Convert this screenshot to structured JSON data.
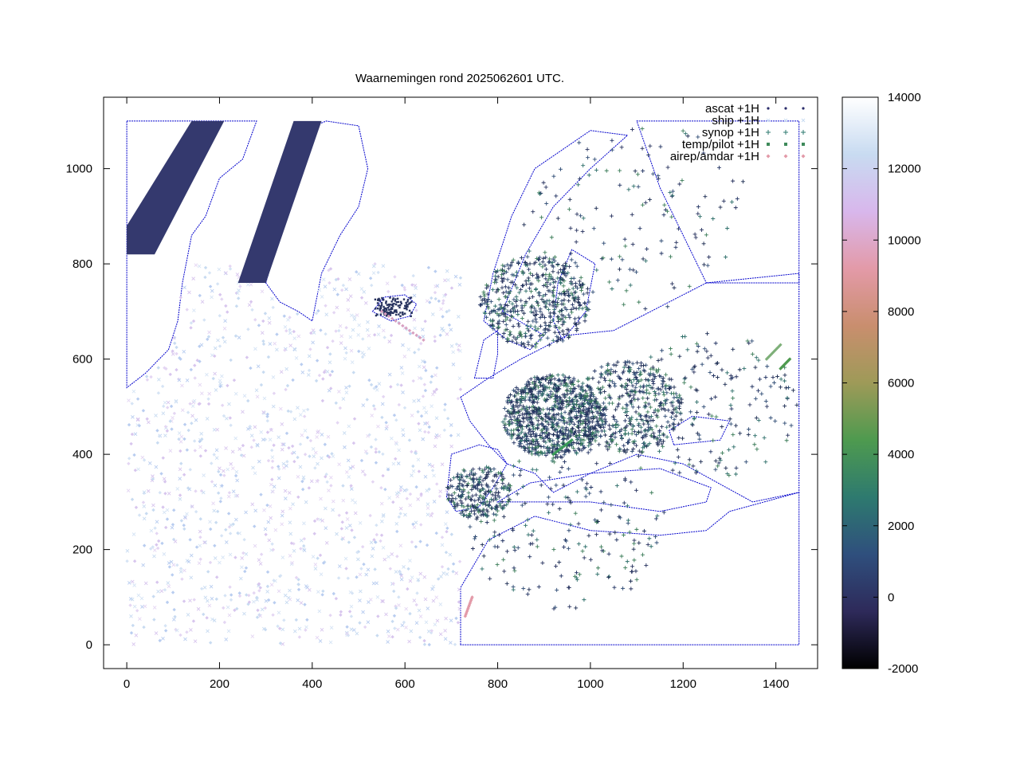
{
  "title": "Waarnemingen rond 2025062601 UTC.",
  "chart_data": {
    "type": "scatter",
    "title": "Waarnemingen rond 2025062601 UTC.",
    "xlim": [
      -50,
      1490
    ],
    "ylim": [
      -50,
      1150
    ],
    "x_ticks": [
      0,
      200,
      400,
      600,
      800,
      1000,
      1200,
      1400
    ],
    "y_ticks": [
      0,
      200,
      400,
      600,
      800,
      1000
    ],
    "grid": false,
    "legend_position": "top-right",
    "legend": [
      {
        "name": "ascat +1H",
        "marker": "dot"
      },
      {
        "name": "ship +1H",
        "marker": "x"
      },
      {
        "name": "synop +1H",
        "marker": "plus"
      },
      {
        "name": "temp/pilot +1H",
        "marker": "filled-square"
      },
      {
        "name": "airep/amdar +1H",
        "marker": "diamond"
      }
    ],
    "colorbar": {
      "range": [
        -2000,
        14000
      ],
      "ticks": [
        -2000,
        0,
        2000,
        4000,
        6000,
        8000,
        10000,
        12000,
        14000
      ],
      "colors": [
        "#000000",
        "#2e2a5a",
        "#2f4f7d",
        "#2e7a6f",
        "#4e9a4f",
        "#9e9a58",
        "#c98e6e",
        "#e39aa8",
        "#d8b7ec",
        "#c8dbf1",
        "#ffffff"
      ]
    },
    "coastline_color": "#0000cc"
  }
}
